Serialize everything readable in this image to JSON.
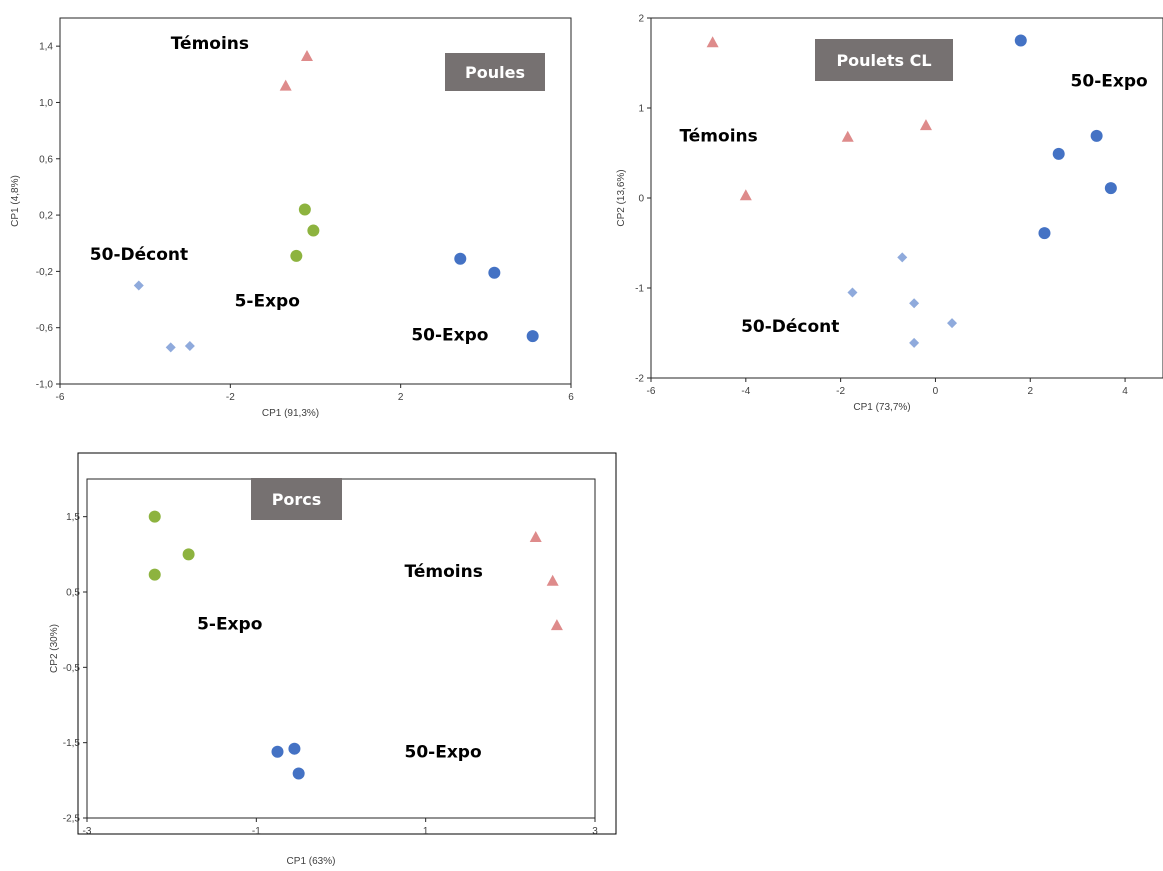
{
  "colors": {
    "temoins": "#DE8B8B",
    "expo5": "#8DB33F",
    "expo50": "#4472C4",
    "decont50": "#8FAADC",
    "badge": "#767171"
  },
  "chart_data": [
    {
      "type": "scatter",
      "badge": "Poules",
      "xlabel": "CP1 (91,3%)",
      "ylabel": "CP1 (4,8%)",
      "xlim": [
        -6,
        6
      ],
      "ylim": [
        -1.0,
        1.6
      ],
      "xticks": [
        "-6",
        "-2",
        "2",
        "6"
      ],
      "xtick_values": [
        -6,
        -2,
        2,
        6
      ],
      "yticks": [
        "-1,0",
        "-0,6",
        "-0,2",
        "0,2",
        "0,6",
        "1,0",
        "1,4"
      ],
      "ytick_values": [
        -1.0,
        -0.6,
        -0.2,
        0.2,
        0.6,
        1.0,
        1.4
      ],
      "series": [
        {
          "name": "Témoins",
          "group": "temoins",
          "marker": "triangle",
          "points": [
            [
              -0.2,
              1.33
            ],
            [
              -0.7,
              1.12
            ]
          ]
        },
        {
          "name": "5-Expo",
          "group": "expo5",
          "marker": "circle",
          "points": [
            [
              -0.25,
              0.24
            ],
            [
              -0.05,
              0.09
            ],
            [
              -0.45,
              -0.09
            ]
          ]
        },
        {
          "name": "50-Expo",
          "group": "expo50",
          "marker": "circle",
          "points": [
            [
              3.4,
              -0.11
            ],
            [
              4.2,
              -0.21
            ],
            [
              5.1,
              -0.66
            ]
          ]
        },
        {
          "name": "50-Décont",
          "group": "decont50",
          "marker": "diamond",
          "points": [
            [
              -4.15,
              -0.3
            ],
            [
              -3.4,
              -0.74
            ],
            [
              -2.95,
              -0.73
            ]
          ]
        }
      ],
      "annotations": [
        {
          "text": "Témoins",
          "x": -3.4,
          "y": 1.38
        },
        {
          "text": "50-Décont",
          "x": -5.3,
          "y": -0.12
        },
        {
          "text": "5-Expo",
          "x": -1.9,
          "y": -0.45
        },
        {
          "text": "50-Expo",
          "x": 2.25,
          "y": -0.69
        }
      ]
    },
    {
      "type": "scatter",
      "badge": "Poulets CL",
      "xlabel": "CP1 (73,7%)",
      "ylabel": "CP2 (13,6%)",
      "xlim": [
        -6,
        4.8
      ],
      "ylim": [
        -2,
        2
      ],
      "xticks": [
        "-6",
        "-4",
        "-2",
        "0",
        "2",
        "4"
      ],
      "xtick_values": [
        -6,
        -4,
        -2,
        0,
        2,
        4
      ],
      "yticks": [
        "-2",
        "-1",
        "0",
        "1",
        "2"
      ],
      "ytick_values": [
        -2,
        -1,
        0,
        1,
        2
      ],
      "series": [
        {
          "name": "Témoins",
          "group": "temoins",
          "marker": "triangle",
          "points": [
            [
              -4.7,
              1.73
            ],
            [
              -1.85,
              0.68
            ],
            [
              -0.2,
              0.81
            ],
            [
              -4.0,
              0.03
            ]
          ]
        },
        {
          "name": "50-Expo",
          "group": "expo50",
          "marker": "circle",
          "points": [
            [
              1.8,
              1.75
            ],
            [
              3.4,
              0.69
            ],
            [
              2.6,
              0.49
            ],
            [
              3.7,
              0.11
            ],
            [
              2.3,
              -0.39
            ]
          ]
        },
        {
          "name": "50-Décont",
          "group": "decont50",
          "marker": "diamond",
          "points": [
            [
              -0.7,
              -0.66
            ],
            [
              -1.75,
              -1.05
            ],
            [
              -0.45,
              -1.17
            ],
            [
              0.35,
              -1.39
            ],
            [
              -0.45,
              -1.61
            ]
          ]
        }
      ],
      "annotations": [
        {
          "text": "Témoins",
          "x": -5.4,
          "y": 0.63
        },
        {
          "text": "50-Expo",
          "x": 2.85,
          "y": 1.24
        },
        {
          "text": "50-Décont",
          "x": -4.1,
          "y": -1.49
        }
      ]
    },
    {
      "type": "scatter",
      "badge": "Porcs",
      "xlabel": "CP1 (63%)",
      "ylabel": "CP2 (30%)",
      "xlim": [
        -3,
        3
      ],
      "ylim": [
        -2.5,
        2.0
      ],
      "xticks": [
        "-3",
        "-1",
        "1",
        "3"
      ],
      "xtick_values": [
        -3,
        -1,
        1,
        3
      ],
      "yticks": [
        "-2,5",
        "-1,5",
        "-0,5",
        "0,5",
        "1,5"
      ],
      "ytick_values": [
        -2.5,
        -1.5,
        -0.5,
        0.5,
        1.5
      ],
      "series": [
        {
          "name": "5-Expo",
          "group": "expo5",
          "marker": "circle",
          "points": [
            [
              -2.2,
              1.5
            ],
            [
              -1.8,
              1.0
            ],
            [
              -2.2,
              0.73
            ]
          ]
        },
        {
          "name": "Témoins",
          "group": "temoins",
          "marker": "triangle",
          "points": [
            [
              2.3,
              1.23
            ],
            [
              2.5,
              0.65
            ],
            [
              2.55,
              0.06
            ]
          ]
        },
        {
          "name": "50-Expo",
          "group": "expo50",
          "marker": "circle",
          "points": [
            [
              -0.75,
              -1.62
            ],
            [
              -0.55,
              -1.58
            ],
            [
              -0.5,
              -1.91
            ]
          ]
        }
      ],
      "annotations": [
        {
          "text": "Témoins",
          "x": 0.75,
          "y": 0.7
        },
        {
          "text": "5-Expo",
          "x": -1.7,
          "y": 0.0
        },
        {
          "text": "50-Expo",
          "x": 0.75,
          "y": -1.7
        }
      ]
    }
  ]
}
